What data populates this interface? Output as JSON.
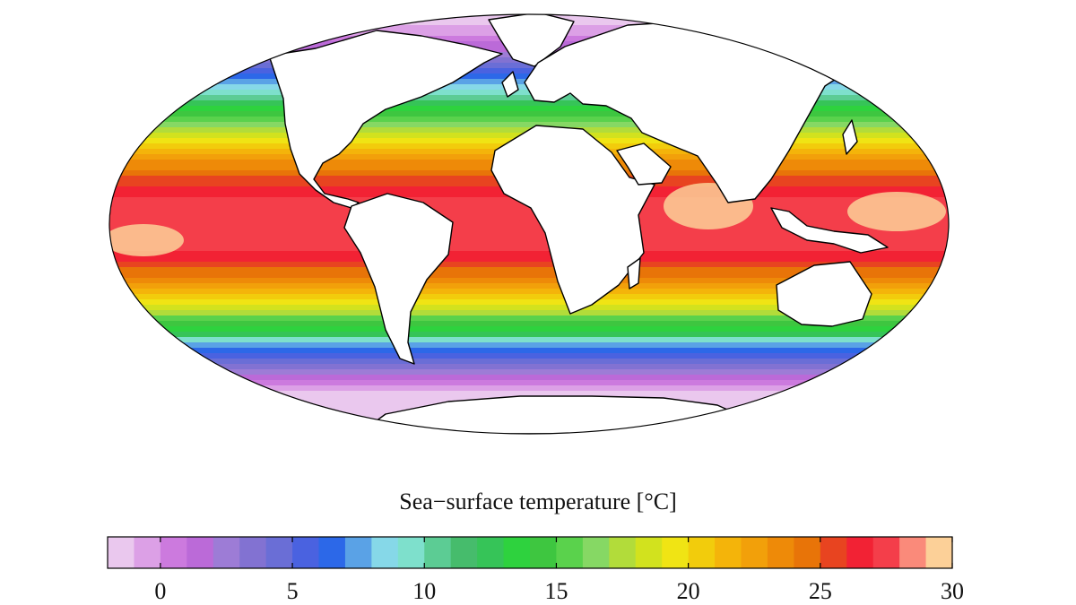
{
  "map": {
    "projection": "mollweide",
    "land_color": "#ffffff",
    "coast_color": "#000000",
    "field": {
      "equator_temp": 28,
      "pole_temp_north": -1.5,
      "pole_temp_south": -1.8,
      "warm_pool_temp": 29.5
    }
  },
  "colorbar": {
    "title": "Sea−surface temperature [°C]",
    "min": -2,
    "max": 30,
    "ticks": [
      {
        "value": 0,
        "label": "0"
      },
      {
        "value": 5,
        "label": "5"
      },
      {
        "value": 10,
        "label": "10"
      },
      {
        "value": 15,
        "label": "15"
      },
      {
        "value": 20,
        "label": "20"
      },
      {
        "value": 25,
        "label": "25"
      },
      {
        "value": 30,
        "label": "30"
      }
    ],
    "colors": [
      "#eac8ee",
      "#dca0e6",
      "#cc7ade",
      "#bb6ad8",
      "#9d7cd6",
      "#8272d2",
      "#6a6ed6",
      "#4a62e0",
      "#2c68e8",
      "#5aa2e6",
      "#86d8e8",
      "#7ee0cc",
      "#5ccc94",
      "#46bc6c",
      "#36c458",
      "#2ed23e",
      "#3ec640",
      "#5ad24c",
      "#86d864",
      "#b2dc3a",
      "#d2e21e",
      "#f0e414",
      "#f2cc0c",
      "#f4b40a",
      "#f2a00a",
      "#ee8a08",
      "#e87408",
      "#e84420",
      "#f22234",
      "#f43e4a",
      "#fa8a7a",
      "#fcd098"
    ]
  }
}
